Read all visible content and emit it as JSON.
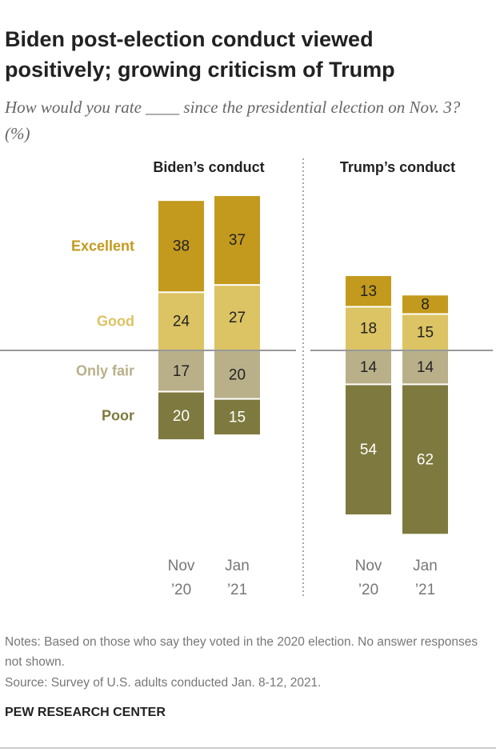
{
  "title": "Biden post-election conduct viewed positively; growing criticism of Trump",
  "subtitle": "How would you rate ____ since the presidential election on Nov. 3? (%)",
  "notes": "Notes: Based on those who say they voted in the 2020 election. No answer responses not shown.",
  "source": "Source: Survey of U.S. adults conducted Jan. 8-12, 2021.",
  "brand": "PEW RESEARCH CENTER",
  "chart_data": [
    {
      "type": "bar",
      "stacked": true,
      "diverging": true,
      "title": "Biden’s conduct",
      "categories": [
        "Nov ’20",
        "Jan ’21"
      ],
      "series": [
        {
          "name": "Excellent",
          "color": "#c39a1d",
          "side": "above",
          "values": [
            38,
            37
          ]
        },
        {
          "name": "Good",
          "color": "#dcc363",
          "side": "above",
          "values": [
            24,
            27
          ]
        },
        {
          "name": "Only fair",
          "color": "#b9b08a",
          "side": "below",
          "values": [
            17,
            20
          ]
        },
        {
          "name": "Poor",
          "color": "#7e7a3f",
          "side": "below",
          "values": [
            20,
            15
          ]
        }
      ]
    },
    {
      "type": "bar",
      "stacked": true,
      "diverging": true,
      "title": "Trump’s conduct",
      "categories": [
        "Nov ’20",
        "Jan ’21"
      ],
      "series": [
        {
          "color": "#c39a1d",
          "side": "above",
          "values": [
            13,
            8
          ]
        },
        {
          "color": "#dcc363",
          "side": "above",
          "values": [
            18,
            15
          ]
        },
        {
          "color": "#b9b08a",
          "side": "below",
          "values": [
            14,
            14
          ]
        },
        {
          "color": "#7e7a3f",
          "side": "below",
          "values": [
            54,
            62
          ]
        }
      ]
    }
  ]
}
